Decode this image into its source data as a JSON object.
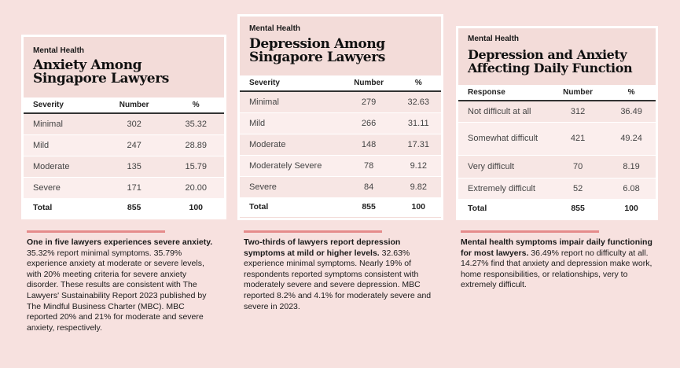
{
  "cards": [
    {
      "kicker": "Mental Health",
      "title_line1": "Anxiety Among",
      "title_line2": "Singapore Lawyers",
      "headers": [
        "Severity",
        "Number",
        "%"
      ],
      "rows": [
        {
          "label": "Minimal",
          "number": "302",
          "pct": "35.32"
        },
        {
          "label": "Mild",
          "number": "247",
          "pct": "28.89"
        },
        {
          "label": "Moderate",
          "number": "135",
          "pct": "15.79"
        },
        {
          "label": "Severe",
          "number": "171",
          "pct": "20.00"
        }
      ],
      "total": {
        "label": "Total",
        "number": "855",
        "pct": "100"
      }
    },
    {
      "kicker": "Mental Health",
      "title_line1": "Depression Among",
      "title_line2": "Singapore Lawyers",
      "headers": [
        "Severity",
        "Number",
        "%"
      ],
      "rows": [
        {
          "label": "Minimal",
          "number": "279",
          "pct": "32.63"
        },
        {
          "label": "Mild",
          "number": "266",
          "pct": "31.11"
        },
        {
          "label": "Moderate",
          "number": "148",
          "pct": "17.31"
        },
        {
          "label": "Moderately Severe",
          "number": "78",
          "pct": "9.12"
        },
        {
          "label": "Severe",
          "number": "84",
          "pct": "9.82"
        }
      ],
      "total": {
        "label": "Total",
        "number": "855",
        "pct": "100"
      }
    },
    {
      "kicker": "Mental Health",
      "title_line1": "Depression and Anxiety",
      "title_line2": "Affecting Daily Function",
      "headers": [
        "Response",
        "Number",
        "%"
      ],
      "rows": [
        {
          "label": "Not difficult at all",
          "number": "312",
          "pct": "36.49"
        },
        {
          "label": "Somewhat difficult",
          "number": "421",
          "pct": "49.24"
        },
        {
          "label": "Very difficult",
          "number": "70",
          "pct": "8.19"
        },
        {
          "label": "Extremely difficult",
          "number": "52",
          "pct": "6.08"
        }
      ],
      "total": {
        "label": "Total",
        "number": "855",
        "pct": "100"
      }
    }
  ],
  "captions": [
    {
      "lead": "One in five lawyers experiences severe anxiety.",
      "body": " 35.32% report minimal symptoms. 35.79% experience anxiety at moderate or severe levels, with 20% meeting criteria for severe anxiety disorder. These results are consistent with The Lawyers' Sustainability Report 2023 published by The Mindful Business Charter (MBC). MBC reported 20% and 21% for moderate and severe anxiety, respectively."
    },
    {
      "lead": "Two-thirds of lawyers report depression symptoms at mild or higher levels.",
      "body": " 32.63% experience minimal symptoms. Nearly 19% of respondents reported symptoms consistent with moderately severe and severe depression. MBC reported 8.2% and 4.1% for moderately severe and severe in 2023."
    },
    {
      "lead": "Mental health symptoms impair daily functioning for most lawyers.",
      "body": " 36.49% report no difficulty at all. 14.27% find that anxiety and depression make work, home responsibilities, or relationships, very to extremely difficult."
    }
  ],
  "colors": {
    "background": "#f7e1df",
    "accent_rule": "#e58b8b",
    "card_border": "#ffffff"
  }
}
